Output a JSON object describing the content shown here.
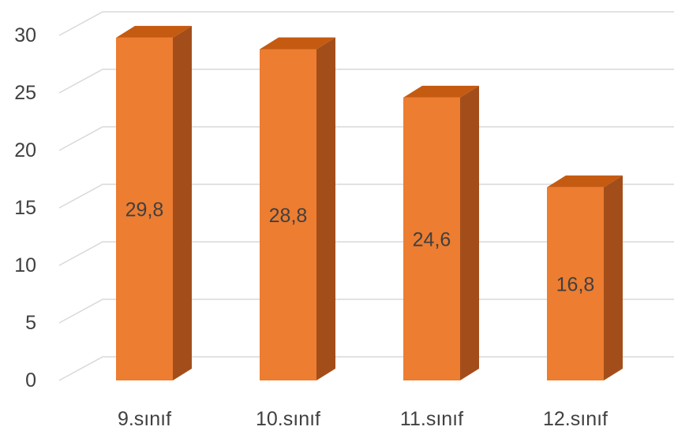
{
  "chart_data": {
    "type": "bar",
    "style": "3d-column",
    "categories": [
      "9.sınıf",
      "10.sınıf",
      "11.sınıf",
      "12.sınıf"
    ],
    "values": [
      29.8,
      28.8,
      24.6,
      16.8
    ],
    "data_labels": [
      "29,8",
      "28,8",
      "24,6",
      "16,8"
    ],
    "yticks": [
      "0",
      "5",
      "10",
      "15",
      "20",
      "25",
      "30"
    ],
    "ylim": [
      0,
      30
    ],
    "grid": true,
    "legend": "none",
    "colors": {
      "front": "#ED7D31",
      "side": "#A34E1A",
      "top": "#C55A11",
      "grid": "#D9D9D9",
      "text": "#404040"
    }
  }
}
